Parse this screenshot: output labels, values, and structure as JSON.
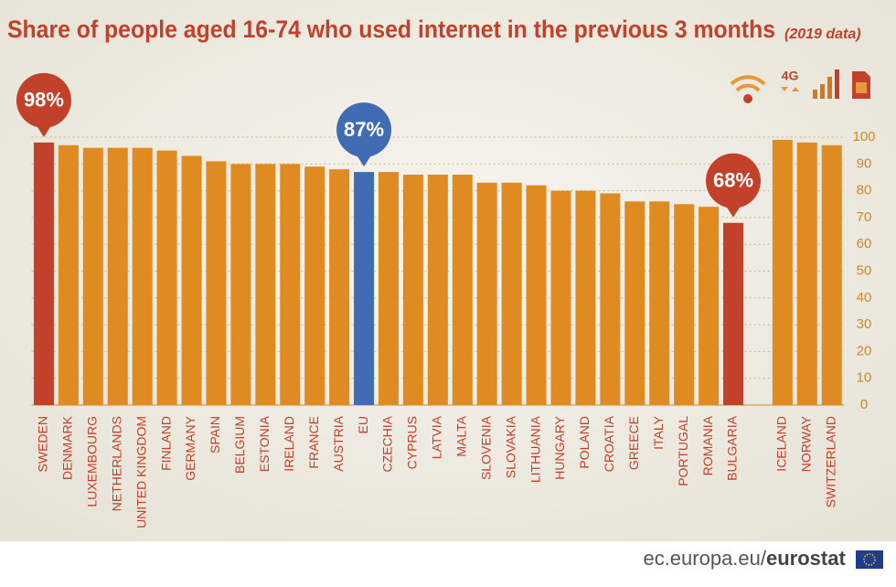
{
  "chart_data": {
    "type": "bar",
    "title": "Share of people aged 16-74 who used internet in the previous 3 months",
    "subtitle": "(2019 data)",
    "categories": [
      "SWEDEN",
      "DENMARK",
      "LUXEMBOURG",
      "NETHERLANDS",
      "UNITED KINGDOM",
      "FINLAND",
      "GERMANY",
      "SPAIN",
      "BELGIUM",
      "ESTONIA",
      "IRELAND",
      "FRANCE",
      "AUSTRIA",
      "EU",
      "CZECHIA",
      "CYPRUS",
      "LATVIA",
      "MALTA",
      "SLOVENIA",
      "SLOVAKIA",
      "LITHUANIA",
      "HUNGARY",
      "POLAND",
      "CROATIA",
      "GREECE",
      "ITALY",
      "PORTUGAL",
      "ROMANIA",
      "BULGARIA",
      null,
      "ICELAND",
      "NORWAY",
      "SWITZERLAND"
    ],
    "values": [
      98,
      97,
      96,
      96,
      96,
      95,
      93,
      91,
      90,
      90,
      90,
      89,
      88,
      87,
      87,
      86,
      86,
      86,
      83,
      83,
      82,
      80,
      80,
      79,
      76,
      76,
      75,
      74,
      68,
      null,
      99,
      98,
      97
    ],
    "value_labels": [
      "98%",
      null,
      null,
      null,
      null,
      null,
      null,
      null,
      null,
      null,
      null,
      null,
      null,
      "87%",
      null,
      null,
      null,
      null,
      null,
      null,
      null,
      null,
      null,
      null,
      null,
      null,
      null,
      null,
      "68%",
      null,
      null,
      null,
      null
    ],
    "colors": [
      "#c2412a",
      "#e08b22",
      "#e08b22",
      "#e08b22",
      "#e08b22",
      "#e08b22",
      "#e08b22",
      "#e08b22",
      "#e08b22",
      "#e08b22",
      "#e08b22",
      "#e08b22",
      "#e08b22",
      "#3f6cb3",
      "#e08b22",
      "#e08b22",
      "#e08b22",
      "#e08b22",
      "#e08b22",
      "#e08b22",
      "#e08b22",
      "#e08b22",
      "#e08b22",
      "#e08b22",
      "#e08b22",
      "#e08b22",
      "#e08b22",
      "#e08b22",
      "#c2412a",
      null,
      "#e08b22",
      "#e08b22",
      "#e08b22"
    ],
    "ylim": [
      0,
      100
    ],
    "yticks": [
      0,
      10,
      20,
      30,
      40,
      50,
      60,
      70,
      80,
      90,
      100
    ],
    "grid": true,
    "icon_label": "4G",
    "footer_site": "ec.europa.eu/",
    "footer_brand": "eurostat"
  }
}
